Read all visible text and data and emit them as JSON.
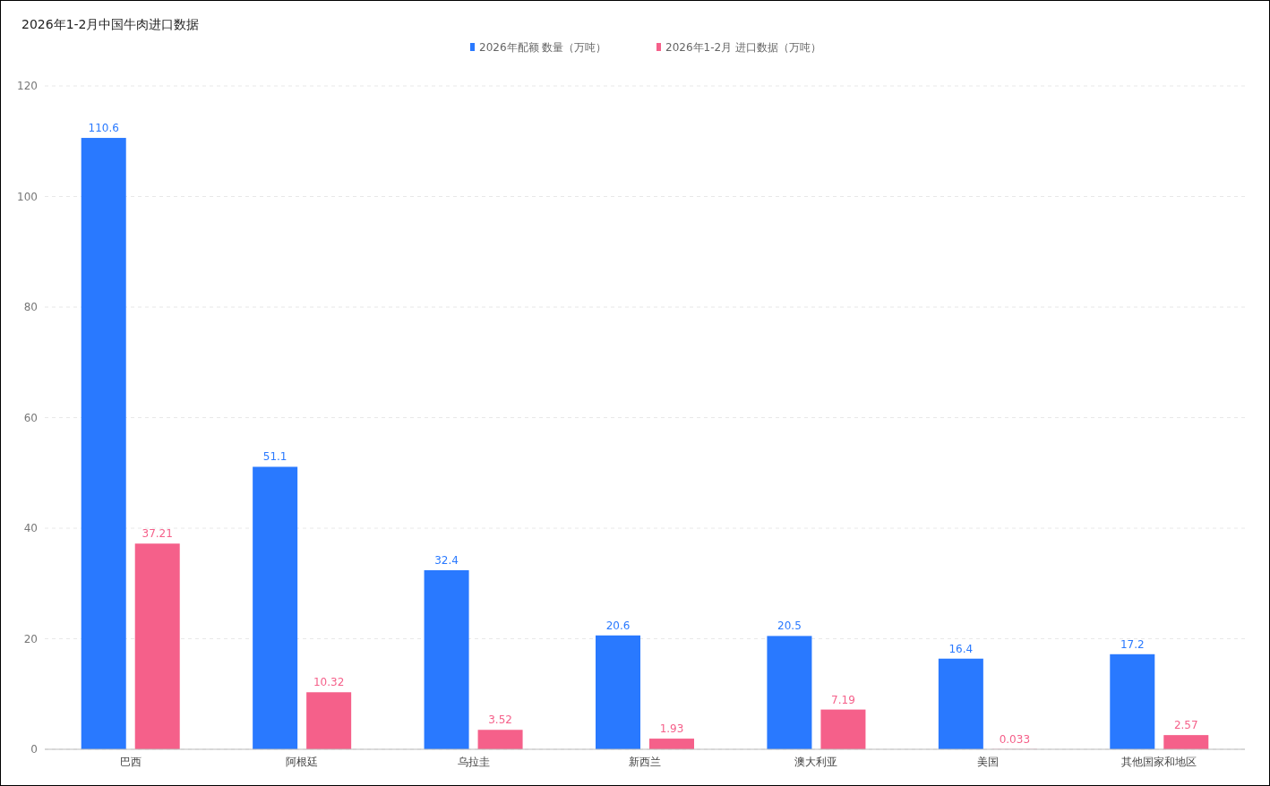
{
  "chart_data": {
    "type": "bar",
    "title": "2026年1-2月中国牛肉进口数据",
    "categories": [
      "巴西",
      "阿根廷",
      "乌拉圭",
      "新西兰",
      "澳大利亚",
      "美国",
      "其他国家和地区"
    ],
    "series": [
      {
        "name": "2026年配额 数量（万吨）",
        "color": "#2979ff",
        "values": [
          110.6,
          51.1,
          32.4,
          20.6,
          20.5,
          16.4,
          17.2
        ]
      },
      {
        "name": "2026年1-2月 进口数据（万吨）",
        "color": "#f5608a",
        "values": [
          37.21,
          10.32,
          3.52,
          1.93,
          7.19,
          0.033,
          2.57
        ]
      }
    ],
    "ylim": [
      0,
      120
    ],
    "yticks": [
      0,
      20,
      40,
      60,
      80,
      100,
      120
    ],
    "grid": "y",
    "legend": "top",
    "data_labels": true
  }
}
